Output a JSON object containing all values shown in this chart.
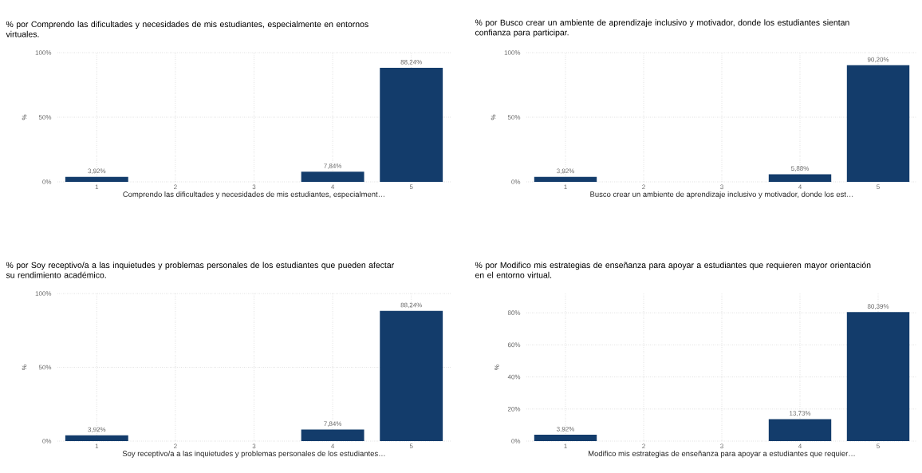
{
  "chart_data": [
    {
      "type": "bar",
      "title": "% por Comprendo las dificultades y necesidades de mis estudiantes, especialmente en entornos virtuales.",
      "xlabel": "Comprendo las dificultades y necesidades de mis estudiantes, especialment…",
      "ylabel": "%",
      "x": [
        1,
        4,
        5
      ],
      "values": [
        3.92,
        7.84,
        88.24
      ],
      "value_labels": [
        "3,92%",
        "7,84%",
        "88,24%"
      ],
      "color": "#133c6b",
      "xlim": [
        0.5,
        5.5
      ],
      "xticks": [
        1,
        2,
        3,
        4,
        5
      ],
      "ylim": [
        0,
        100
      ],
      "yticks": [
        {
          "value": 0,
          "label": "0%"
        },
        {
          "value": 50,
          "label": "50%"
        },
        {
          "value": 100,
          "label": "100%"
        }
      ],
      "grid": true
    },
    {
      "type": "bar",
      "title": "% por Busco crear un ambiente de aprendizaje inclusivo y motivador, donde los estudiantes sientan confianza para participar.",
      "xlabel": "Busco crear un ambiente de aprendizaje inclusivo y motivador, donde los est…",
      "ylabel": "%",
      "x": [
        1,
        4,
        5
      ],
      "values": [
        3.92,
        5.88,
        90.2
      ],
      "value_labels": [
        "3,92%",
        "5,88%",
        "90,20%"
      ],
      "color": "#133c6b",
      "xlim": [
        0.5,
        5.5
      ],
      "xticks": [
        1,
        2,
        3,
        4,
        5
      ],
      "ylim": [
        0,
        100
      ],
      "yticks": [
        {
          "value": 0,
          "label": "0%"
        },
        {
          "value": 50,
          "label": "50%"
        },
        {
          "value": 100,
          "label": "100%"
        }
      ],
      "grid": true
    },
    {
      "type": "bar",
      "title": "% por Soy receptivo/a a las inquietudes y problemas personales de los estudiantes que pueden afectar su rendimiento académico.",
      "xlabel": "Soy receptivo/a a las inquietudes y problemas personales de los estudiantes…",
      "ylabel": "%",
      "x": [
        1,
        4,
        5
      ],
      "values": [
        3.92,
        7.84,
        88.24
      ],
      "value_labels": [
        "3,92%",
        "7,84%",
        "88,24%"
      ],
      "color": "#133c6b",
      "xlim": [
        0.5,
        5.5
      ],
      "xticks": [
        1,
        2,
        3,
        4,
        5
      ],
      "ylim": [
        0,
        100
      ],
      "yticks": [
        {
          "value": 0,
          "label": "0%"
        },
        {
          "value": 50,
          "label": "50%"
        },
        {
          "value": 100,
          "label": "100%"
        }
      ],
      "grid": true
    },
    {
      "type": "bar",
      "title": "% por Modifico mis estrategias de enseñanza para apoyar a estudiantes que requieren mayor orientación en el entorno virtual.",
      "xlabel": "Modifico mis estrategias de enseñanza para apoyar a estudiantes que requier…",
      "ylabel": "%",
      "x": [
        1,
        4,
        5
      ],
      "values": [
        3.92,
        13.73,
        80.39
      ],
      "value_labels": [
        "3,92%",
        "13,73%",
        "80,39%"
      ],
      "color": "#133c6b",
      "xlim": [
        0.5,
        5.5
      ],
      "xticks": [
        1,
        2,
        3,
        4,
        5
      ],
      "ylim": [
        0,
        92
      ],
      "yticks": [
        {
          "value": 0,
          "label": "0%"
        },
        {
          "value": 20,
          "label": "20%"
        },
        {
          "value": 40,
          "label": "40%"
        },
        {
          "value": 60,
          "label": "60%"
        },
        {
          "value": 80,
          "label": "80%"
        }
      ],
      "grid": true
    }
  ]
}
